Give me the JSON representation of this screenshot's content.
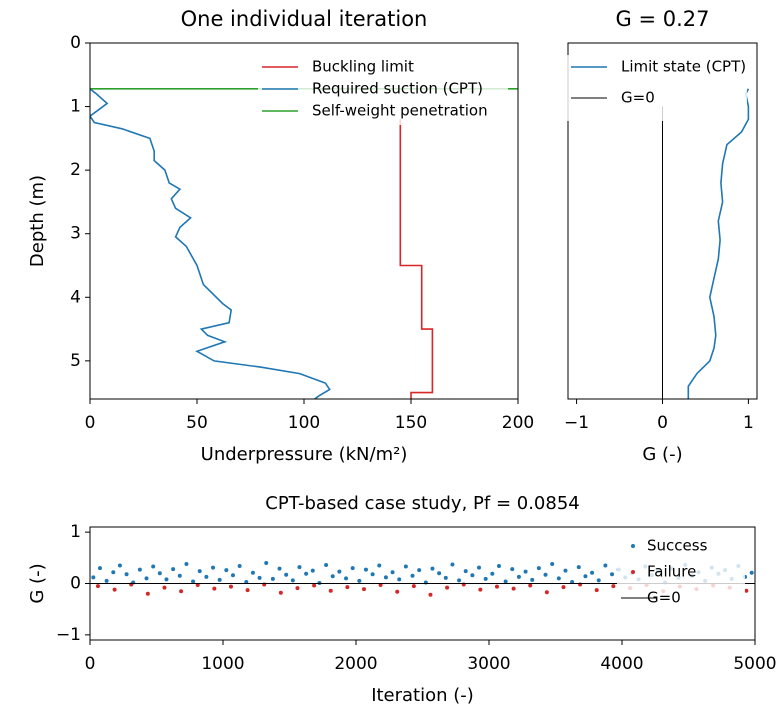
{
  "chart_data": [
    {
      "type": "line",
      "title": "One individual iteration",
      "x_label": "Underpressure (kN/m²)",
      "y_label": "Depth (m)",
      "xlim": [
        0,
        200
      ],
      "xticks": [
        0,
        50,
        100,
        150,
        200
      ],
      "ylim": [
        0,
        5.6
      ],
      "yticks": [
        0,
        1,
        2,
        3,
        4,
        5
      ],
      "y_inverted": true,
      "legend": "upper right",
      "series": [
        {
          "name": "Buckling limit",
          "color": "#d62728",
          "x": [
            145,
            145,
            155,
            155,
            160,
            160,
            150,
            150
          ],
          "y": [
            1.2,
            3.5,
            3.5,
            4.5,
            4.5,
            5.5,
            5.5,
            5.6
          ]
        },
        {
          "name": "Required suction (CPT)",
          "color": "#1f77b4",
          "x": [
            0,
            3,
            8,
            4,
            0,
            2,
            15,
            28,
            30,
            30,
            35,
            37,
            42,
            38,
            40,
            47,
            42,
            40,
            45,
            50,
            53,
            62,
            66,
            65,
            52,
            55,
            63,
            50,
            58,
            80,
            98,
            110,
            112,
            107,
            105
          ],
          "y": [
            0.72,
            0.8,
            0.95,
            1.05,
            1.15,
            1.25,
            1.35,
            1.5,
            1.7,
            1.85,
            2.0,
            2.2,
            2.3,
            2.45,
            2.6,
            2.75,
            2.9,
            3.05,
            3.2,
            3.5,
            3.8,
            4.1,
            4.2,
            4.4,
            4.5,
            4.6,
            4.7,
            4.85,
            5.0,
            5.1,
            5.2,
            5.35,
            5.45,
            5.55,
            5.6
          ]
        },
        {
          "name": "Self-weight penetration",
          "color": "#2ca02c",
          "x": [
            0,
            200
          ],
          "y": [
            0.72,
            0.72
          ]
        }
      ]
    },
    {
      "type": "line",
      "title": "G = 0.27",
      "x_label": "G (-)",
      "xlim": [
        -1.1,
        1.1
      ],
      "xticks": [
        {
          "value": -1,
          "label": "−1"
        },
        0,
        1
      ],
      "ylim": [
        0,
        5.6
      ],
      "y_inverted": true,
      "legend": "upper right",
      "series": [
        {
          "name": "Limit state (CPT)",
          "color": "#1f77b4",
          "x": [
            1.0,
            0.97,
            1.0,
            1.0,
            0.92,
            0.75,
            0.7,
            0.68,
            0.7,
            0.65,
            0.67,
            0.65,
            0.6,
            0.55,
            0.6,
            0.62,
            0.6,
            0.55,
            0.4,
            0.3,
            0.3
          ],
          "y": [
            0.72,
            0.8,
            1.0,
            1.2,
            1.4,
            1.6,
            1.9,
            2.2,
            2.5,
            2.8,
            3.1,
            3.4,
            3.7,
            4.0,
            4.3,
            4.6,
            4.8,
            5.0,
            5.2,
            5.4,
            5.6
          ]
        },
        {
          "name": "G=0",
          "color": "#000000",
          "x": [
            0,
            0
          ],
          "y": [
            1.0,
            5.6
          ]
        }
      ]
    },
    {
      "type": "scatter",
      "title": "CPT-based case study, Pf = 0.0854",
      "x_label": "Iteration (-)",
      "y_label": "G (-)",
      "xlim": [
        0,
        5000
      ],
      "xticks": [
        0,
        1000,
        2000,
        3000,
        4000,
        5000
      ],
      "ylim": [
        -1.1,
        1.1
      ],
      "yticks": [
        {
          "value": -1,
          "label": "−1"
        },
        0,
        1
      ],
      "legend": "upper right",
      "series": [
        {
          "name": "Success",
          "color": "#1f77b4",
          "style": "points",
          "x": [
            25,
            75,
            125,
            175,
            225,
            275,
            325,
            375,
            425,
            475,
            525,
            575,
            625,
            675,
            725,
            775,
            825,
            875,
            925,
            975,
            1025,
            1075,
            1125,
            1175,
            1225,
            1275,
            1325,
            1375,
            1425,
            1475,
            1525,
            1575,
            1625,
            1675,
            1725,
            1775,
            1825,
            1875,
            1925,
            1975,
            2025,
            2075,
            2125,
            2175,
            2225,
            2275,
            2325,
            2375,
            2425,
            2475,
            2525,
            2575,
            2625,
            2675,
            2725,
            2775,
            2825,
            2875,
            2925,
            2975,
            3025,
            3075,
            3125,
            3175,
            3225,
            3275,
            3325,
            3375,
            3425,
            3475,
            3525,
            3575,
            3625,
            3675,
            3725,
            3775,
            3825,
            3875,
            3925,
            3975,
            4025,
            4075,
            4125,
            4175,
            4225,
            4275,
            4325,
            4375,
            4425,
            4475,
            4525,
            4575,
            4625,
            4675,
            4725,
            4775,
            4825,
            4875,
            4925,
            4975
          ],
          "y": [
            0.12,
            0.3,
            0.05,
            0.22,
            0.35,
            0.18,
            0.02,
            0.27,
            0.1,
            0.33,
            0.2,
            0.08,
            0.28,
            0.15,
            0.38,
            0.04,
            0.24,
            0.13,
            0.31,
            0.07,
            0.26,
            0.16,
            0.34,
            0.03,
            0.21,
            0.11,
            0.4,
            0.09,
            0.29,
            0.17,
            0.06,
            0.32,
            0.19,
            0.25,
            0.01,
            0.36,
            0.14,
            0.23,
            0.1,
            0.3,
            0.05,
            0.27,
            0.18,
            0.35,
            0.12,
            0.22,
            0.08,
            0.33,
            0.15,
            0.26,
            0.02,
            0.29,
            0.2,
            0.11,
            0.37,
            0.06,
            0.24,
            0.16,
            0.31,
            0.09,
            0.19,
            0.34,
            0.04,
            0.28,
            0.13,
            0.23,
            0.07,
            0.3,
            0.17,
            0.38,
            0.1,
            0.25,
            0.03,
            0.32,
            0.14,
            0.21,
            0.06,
            0.35,
            0.18,
            0.27,
            0.12,
            0.2,
            0.08,
            0.33,
            0.16,
            0.24,
            0.02,
            0.29,
            0.11,
            0.36,
            0.15,
            0.22,
            0.05,
            0.31,
            0.19,
            0.26,
            0.09,
            0.34,
            0.13,
            0.21
          ]
        },
        {
          "name": "Failure",
          "color": "#d62728",
          "style": "points",
          "x": [
            60,
            185,
            310,
            435,
            560,
            685,
            810,
            935,
            1060,
            1185,
            1310,
            1435,
            1560,
            1685,
            1810,
            1935,
            2060,
            2185,
            2310,
            2435,
            2560,
            2685,
            2810,
            2935,
            3060,
            3185,
            3310,
            3435,
            3560,
            3685,
            3810,
            3935,
            4060,
            4185,
            4310,
            4435,
            4560,
            4685,
            4810,
            4935
          ],
          "y": [
            -0.05,
            -0.12,
            -0.02,
            -0.2,
            -0.08,
            -0.15,
            -0.03,
            -0.1,
            -0.06,
            -0.13,
            -0.02,
            -0.18,
            -0.09,
            -0.04,
            -0.14,
            -0.07,
            -0.11,
            -0.03,
            -0.16,
            -0.05,
            -0.22,
            -0.08,
            -0.02,
            -0.12,
            -0.06,
            -0.1,
            -0.04,
            -0.17,
            -0.07,
            -0.02,
            -0.13,
            -0.05,
            -0.09,
            -0.03,
            -0.15,
            -0.06,
            -0.11,
            -0.04,
            -0.08,
            -0.14
          ]
        },
        {
          "name": "G=0",
          "color": "#000000",
          "style": "line",
          "x": [
            0,
            5000
          ],
          "y": [
            0,
            0
          ]
        }
      ]
    }
  ]
}
